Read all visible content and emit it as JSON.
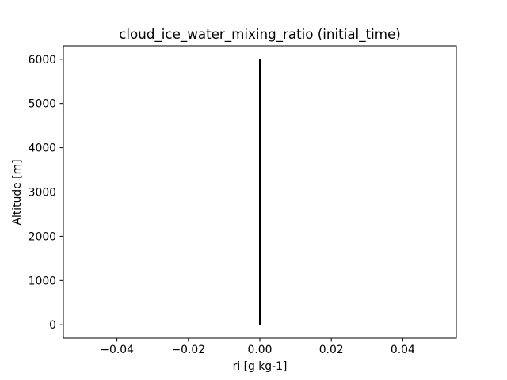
{
  "chart_data": {
    "type": "line",
    "title": "cloud_ice_water_mixing_ratio (initial_time)",
    "xlabel": "ri [g kg-1]",
    "ylabel": "Altitude [m]",
    "xlim": [
      -0.055,
      0.055
    ],
    "ylim": [
      -300,
      6300
    ],
    "xticks": [
      -0.04,
      -0.02,
      0.0,
      0.02,
      0.04
    ],
    "xtick_labels": [
      "−0.04",
      "−0.02",
      "0.00",
      "0.02",
      "0.04"
    ],
    "yticks": [
      0,
      1000,
      2000,
      3000,
      4000,
      5000,
      6000
    ],
    "ytick_labels": [
      "0",
      "1000",
      "2000",
      "3000",
      "4000",
      "5000",
      "6000"
    ],
    "grid": false,
    "series": [
      {
        "color": "#000000",
        "points": [
          {
            "x": 0.0,
            "y": 0
          },
          {
            "x": 0.0,
            "y": 1000
          },
          {
            "x": 0.0,
            "y": 2000
          },
          {
            "x": 0.0,
            "y": 3000
          },
          {
            "x": 0.0,
            "y": 4000
          },
          {
            "x": 0.0,
            "y": 5000
          },
          {
            "x": 0.0,
            "y": 6000
          }
        ]
      }
    ]
  }
}
